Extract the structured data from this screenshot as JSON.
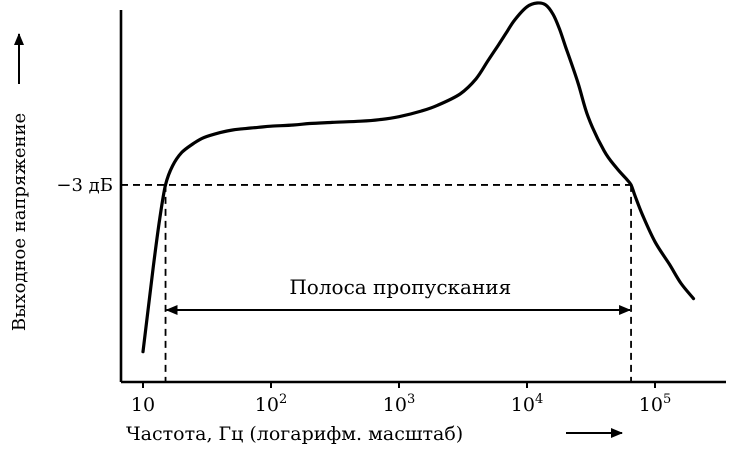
{
  "chart_data": {
    "type": "line",
    "title": "",
    "xlabel": "Частота, Гц (логарифм. масштаб)",
    "ylabel": "Выходное напряжение",
    "x_scale": "log",
    "x_ticks": [
      {
        "value": 10,
        "label": "10",
        "base": "",
        "exp": ""
      },
      {
        "value": 100,
        "label": "",
        "base": "10",
        "exp": "2"
      },
      {
        "value": 1000,
        "label": "",
        "base": "10",
        "exp": "3"
      },
      {
        "value": 10000,
        "label": "",
        "base": "10",
        "exp": "4"
      },
      {
        "value": 100000,
        "label": "",
        "base": "10",
        "exp": "5"
      }
    ],
    "y_tick_label": "−3 дБ",
    "y_units": "relative output voltage (0 = axis, 1 = peak)",
    "ylim": [
      0,
      1
    ],
    "minus3db_level": 0.52,
    "grid": false,
    "series": [
      {
        "x": [
          10,
          12,
          13.5,
          15,
          17,
          20,
          25,
          30,
          40,
          50,
          60,
          80,
          100,
          150,
          200,
          300,
          500,
          700,
          1000,
          1500,
          2000,
          3000,
          4000,
          5000,
          6000,
          7000,
          8000,
          10000,
          12000,
          14000,
          16000,
          18000,
          20000,
          25000,
          30000,
          40000,
          50000,
          60000,
          65000,
          70000,
          80000,
          100000,
          130000,
          160000,
          200000
        ],
        "y": [
          0.08,
          0.3,
          0.43,
          0.52,
          0.57,
          0.605,
          0.63,
          0.645,
          0.658,
          0.665,
          0.668,
          0.672,
          0.675,
          0.678,
          0.682,
          0.685,
          0.688,
          0.692,
          0.7,
          0.715,
          0.73,
          0.76,
          0.8,
          0.85,
          0.89,
          0.925,
          0.955,
          0.99,
          1.0,
          0.995,
          0.97,
          0.93,
          0.885,
          0.79,
          0.7,
          0.61,
          0.565,
          0.535,
          0.52,
          0.49,
          0.44,
          0.37,
          0.31,
          0.26,
          0.22
        ]
      }
    ],
    "annotations": {
      "bandwidth_label": "Полоса пропускания",
      "bandwidth_from": 15,
      "bandwidth_to": 65000
    }
  }
}
